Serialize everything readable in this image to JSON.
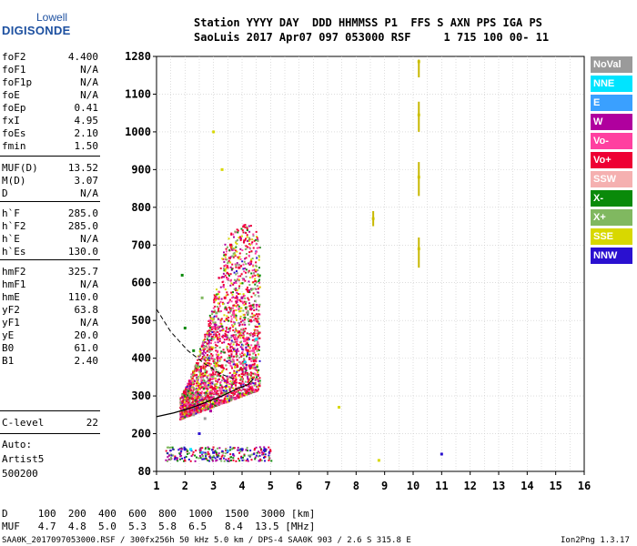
{
  "logo": {
    "top": "Lowell",
    "bottom": "DIGISONDE"
  },
  "header": {
    "line1": "Station YYYY DAY  DDD HHMMSS P1  FFS S AXN PPS IGA PS",
    "line2": "SaoLuis 2017 Apr07 097 053000 RSF     1 715 100 00- 11"
  },
  "params": [
    {
      "label": "foF2",
      "value": "4.400"
    },
    {
      "label": "foF1",
      "value": "N/A"
    },
    {
      "label": "foF1p",
      "value": "N/A"
    },
    {
      "label": "foE",
      "value": "N/A"
    },
    {
      "label": "foEp",
      "value": "0.41"
    },
    {
      "label": "fxI",
      "value": "4.95"
    },
    {
      "label": "foEs",
      "value": "2.10"
    },
    {
      "label": "fmin",
      "value": "1.50"
    },
    {
      "label": "MUF(D)",
      "value": "13.52"
    },
    {
      "label": "M(D)",
      "value": "3.07"
    },
    {
      "label": "D",
      "value": "N/A"
    },
    {
      "label": "h`F",
      "value": "285.0"
    },
    {
      "label": "h`F2",
      "value": "285.0"
    },
    {
      "label": "h`E",
      "value": "N/A"
    },
    {
      "label": "h`Es",
      "value": "130.0"
    },
    {
      "label": "hmF2",
      "value": "325.7"
    },
    {
      "label": "hmF1",
      "value": "N/A"
    },
    {
      "label": "hmE",
      "value": "110.0"
    },
    {
      "label": "yF2",
      "value": "63.8"
    },
    {
      "label": "yF1",
      "value": "N/A"
    },
    {
      "label": "yE",
      "value": "20.0"
    },
    {
      "label": "B0",
      "value": "61.0"
    },
    {
      "label": "B1",
      "value": "2.40"
    },
    {
      "label": "C-level",
      "value": "22"
    }
  ],
  "auto": {
    "line1": "Auto:",
    "line2": "Artist5",
    "line3": "500200"
  },
  "legend": [
    {
      "label": "NoVal",
      "color": "#9a9a9a"
    },
    {
      "label": "NNE",
      "color": "#00e4ff"
    },
    {
      "label": "E",
      "color": "#3aa0ff"
    },
    {
      "label": "W",
      "color": "#b0009e"
    },
    {
      "label": "Vo-",
      "color": "#ff40a0"
    },
    {
      "label": "Vo+",
      "color": "#ee0033"
    },
    {
      "label": "SSW",
      "color": "#f5b0b0"
    },
    {
      "label": "X-",
      "color": "#0a8a0a"
    },
    {
      "label": "X+",
      "color": "#80b860"
    },
    {
      "label": "SSE",
      "color": "#d8d800"
    },
    {
      "label": "NNW",
      "color": "#2a10d0"
    }
  ],
  "muf_table": {
    "line1": "D     100  200  400  600  800  1000  1500  3000 [km]",
    "line2": "MUF   4.7  4.8  5.0  5.3  5.8  6.5   8.4  13.5 [MHz]"
  },
  "footer": {
    "left": "SAA0K_2017097053000.RSF / 300fx256h 50 kHz 5.0 km / DPS-4 SAA0K 903 / 2.6 S 315.8 E",
    "right": "Ion2Png 1.3.17"
  },
  "chart_data": {
    "type": "scatter",
    "x_ticks": [
      1,
      2,
      3,
      4,
      5,
      6,
      7,
      8,
      9,
      10,
      11,
      12,
      13,
      14,
      15,
      16
    ],
    "y_ticks": [
      80,
      200,
      300,
      400,
      500,
      600,
      700,
      800,
      900,
      1000,
      1100,
      1280
    ],
    "xlim": [
      1,
      16
    ],
    "ylim": [
      80,
      1280
    ],
    "grid": true,
    "series": [
      {
        "name": "Vo+",
        "color": "#ee0033",
        "points": [
          [
            3.0,
            320
          ],
          [
            3.3,
            380
          ],
          [
            3.6,
            420
          ],
          [
            3.9,
            470
          ],
          [
            4.2,
            420
          ],
          [
            3.4,
            560
          ],
          [
            2.8,
            300
          ],
          [
            3.9,
            640
          ],
          [
            4.3,
            500
          ],
          [
            3.1,
            460
          ],
          [
            3.6,
            700
          ],
          [
            4.0,
            370
          ]
        ]
      },
      {
        "name": "Vo-",
        "color": "#ff40a0",
        "points": [
          [
            3.2,
            400
          ],
          [
            3.7,
            520
          ],
          [
            4.1,
            450
          ],
          [
            2.7,
            330
          ],
          [
            3.5,
            610
          ],
          [
            4.4,
            420
          ],
          [
            3.0,
            480
          ]
        ]
      },
      {
        "name": "W",
        "color": "#b0009e",
        "points": [
          [
            3.4,
            340
          ],
          [
            4.0,
            560
          ],
          [
            2.9,
            260
          ],
          [
            3.8,
            420
          ],
          [
            4.3,
            380
          ]
        ]
      },
      {
        "name": "X+",
        "color": "#80b860",
        "points": [
          [
            2.4,
            380
          ],
          [
            2.2,
            300
          ],
          [
            3.1,
            520
          ],
          [
            4.4,
            400
          ],
          [
            2.6,
            560
          ]
        ]
      },
      {
        "name": "X-",
        "color": "#0a8a0a",
        "points": [
          [
            2.0,
            480
          ],
          [
            2.3,
            420
          ],
          [
            1.9,
            620
          ]
        ]
      },
      {
        "name": "SSE",
        "color": "#d8d800",
        "points": [
          [
            3.1,
            380
          ],
          [
            3.3,
            900
          ],
          [
            3.0,
            1000
          ],
          [
            10.2,
            1255
          ],
          [
            10.2,
            1045
          ],
          [
            10.2,
            880
          ],
          [
            10.2,
            690
          ],
          [
            8.6,
            770
          ],
          [
            7.4,
            270
          ],
          [
            8.8,
            115
          ]
        ]
      },
      {
        "name": "NNW",
        "color": "#2a10d0",
        "points": [
          [
            2.0,
            150
          ],
          [
            2.5,
            200
          ],
          [
            3.0,
            140
          ],
          [
            4.0,
            150
          ],
          [
            4.8,
            150
          ],
          [
            11.0,
            135
          ]
        ]
      },
      {
        "name": "NNE",
        "color": "#00e4ff",
        "points": [
          [
            4.5,
            450
          ],
          [
            2.2,
            150
          ],
          [
            4.1,
            390
          ]
        ]
      },
      {
        "name": "E",
        "color": "#3aa0ff",
        "points": [
          [
            2.6,
            140
          ],
          [
            3.5,
            145
          ]
        ]
      },
      {
        "name": "NoVal",
        "color": "#9a9a9a",
        "points": [
          [
            2.3,
            250
          ],
          [
            2.7,
            240
          ],
          [
            4.2,
            520
          ]
        ]
      },
      {
        "name": "SSW",
        "color": "#f5b0b0",
        "points": [
          [
            2.8,
            430
          ],
          [
            4.5,
            470
          ]
        ]
      }
    ]
  }
}
